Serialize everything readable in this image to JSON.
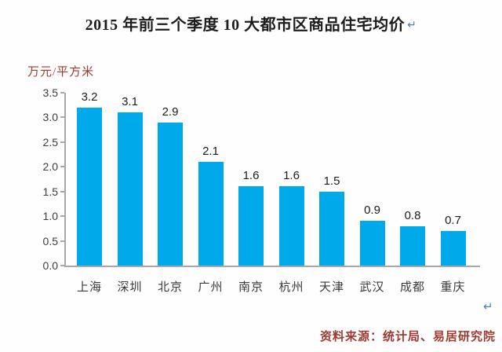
{
  "header": {
    "title": "2015 年前三个季度 10 大都市区商品住宅均价",
    "paragraph_mark": "↵"
  },
  "chart_data": {
    "type": "bar",
    "title": "2015 年前三个季度 10 大都市区商品住宅均价",
    "unit_label": "万元/平方米",
    "ylabel": "万元/平方米",
    "xlabel": "",
    "categories": [
      "上海",
      "深圳",
      "北京",
      "广州",
      "南京",
      "杭州",
      "天津",
      "武汉",
      "成都",
      "重庆"
    ],
    "values": [
      3.2,
      3.1,
      2.9,
      2.1,
      1.6,
      1.6,
      1.5,
      0.9,
      0.8,
      0.7
    ],
    "ylim": [
      0,
      3.5
    ],
    "ytick_step": 0.5,
    "ytick_labels": [
      "0.0",
      "0.5",
      "1.0",
      "1.5",
      "2.0",
      "2.5",
      "3.0",
      "3.5"
    ],
    "grid": false,
    "legend": "none",
    "value_labels_shown": true,
    "bar_color": "#00a9e9",
    "axis_color": "#a8a8a8"
  },
  "footer": {
    "paragraph_mark": "↵",
    "source_note": "资料来源：统计局、易居研究院"
  },
  "colors": {
    "annotation_red": "#9e3a2f",
    "mark_blue": "#4a7ebb",
    "bar_cyan": "#00a9e9"
  }
}
